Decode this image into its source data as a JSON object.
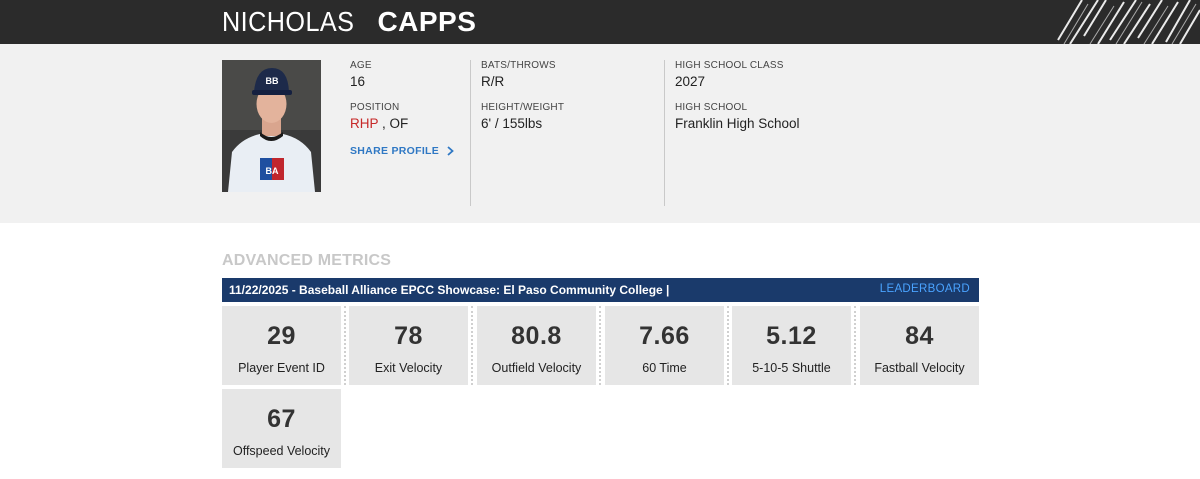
{
  "header": {
    "first_name": "NICHOLAS",
    "last_name": "CAPPS"
  },
  "profile": {
    "age_label": "AGE",
    "age_value": "16",
    "position_label": "POSITION",
    "position_primary": "RHP",
    "position_secondary": " , OF",
    "share_label": "SHARE PROFILE",
    "bats_throws_label": "BATS/THROWS",
    "bats_throws_value": "R/R",
    "height_weight_label": "HEIGHT/WEIGHT",
    "height_weight_value": "6' / 155lbs",
    "hs_class_label": "HIGH SCHOOL CLASS",
    "hs_class_value": "2027",
    "high_school_label": "HIGH SCHOOL",
    "high_school_value": "Franklin High School"
  },
  "metrics": {
    "title": "ADVANCED METRICS",
    "event": "11/22/2025 - Baseball Alliance EPCC Showcase: El Paso Community College |",
    "leaderboard_label": "LEADERBOARD",
    "tiles": [
      {
        "value": "29",
        "label": "Player Event ID"
      },
      {
        "value": "78",
        "label": "Exit Velocity"
      },
      {
        "value": "80.8",
        "label": "Outfield Velocity"
      },
      {
        "value": "7.66",
        "label": "60 Time"
      },
      {
        "value": "5.12",
        "label": "5-10-5 Shuttle"
      },
      {
        "value": "84",
        "label": "Fastball Velocity"
      },
      {
        "value": "67",
        "label": "Offspeed Velocity"
      }
    ]
  },
  "colors": {
    "header_bg": "#2b2b2b",
    "event_bar_bg": "#1a3a6b",
    "accent_blue": "#2f78c4",
    "accent_red": "#c62828"
  }
}
